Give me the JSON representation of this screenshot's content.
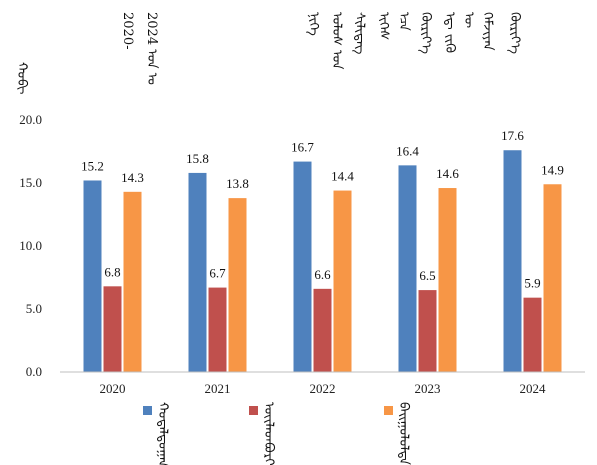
{
  "chart_data": {
    "type": "bar",
    "title_lines": [
      "ᠬᠦᠷᠢᠶ᠎ᠡ",
      "ᠬᠡᠮᠵᠢᠶᠡᠨ",
      "ᠦ",
      "ᠡᠳ᠋ ᠵᠢᠭᠦ",
      "ᠬᠦᠷᠢᠶ᠎ᠡ",
      "ᠡᠴᠡ",
      "ᠢᠬᠡᠰ",
      "ᠰᠢᠯᠢᠳᠡᠭ",
      "ᠤᠯᠤᠰ ᠤᠨ",
      "ᠨᠢᠭᠡ",
      "2024 ᠣᠨ ᠤ",
      "2020-"
    ],
    "ylabel": "ᠬᠤᠪᠢ",
    "categories": [
      "2020",
      "2021",
      "2022",
      "2023",
      "2024"
    ],
    "series": [
      {
        "name": "ᠬᠤᠳᠠᠯᠳᠤᠭᠠᠨ ᠤ",
        "color": "#4F81BD",
        "values": [
          15.2,
          15.8,
          16.7,
          16.4,
          17.6
        ]
      },
      {
        "name": "ᠦᠢᠯᠡᠳᠪᠦᠷᠢ ᠶᠢᠨ",
        "color": "#C0504D",
        "values": [
          6.8,
          6.7,
          6.6,
          6.5,
          5.9
        ]
      },
      {
        "name": "ᠪᠠᠢᠭᠤᠯᠤᠯᠲᠠ ᠶᠢᠨ",
        "color": "#F79646",
        "values": [
          14.3,
          13.8,
          14.4,
          14.6,
          14.9
        ]
      }
    ],
    "yticks": [
      "0.0",
      "5.0",
      "10.0",
      "15.0",
      "20.0"
    ],
    "ylim": [
      0,
      20
    ],
    "grid": false,
    "legend_position": "bottom"
  }
}
